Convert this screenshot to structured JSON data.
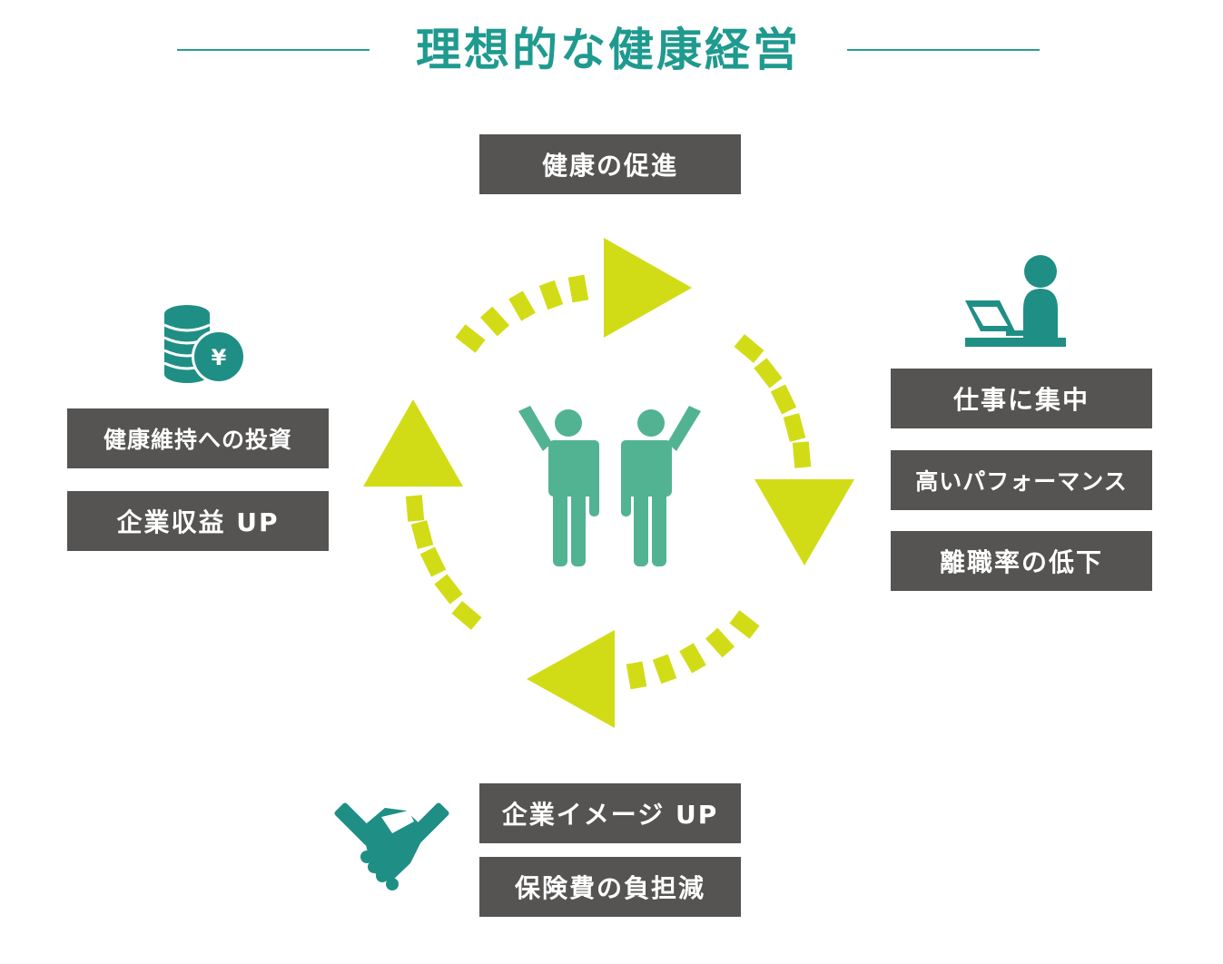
{
  "title": "理想的な健康経営",
  "top": {
    "label": "健康の促進"
  },
  "right": {
    "items": [
      "仕事に集中",
      "高いパフォーマンス",
      "離職率の低下"
    ]
  },
  "left": {
    "items": [
      "健康維持への投資",
      "企業収益 UP"
    ]
  },
  "bottom": {
    "items": [
      "企業イメージ UP",
      "保険費の負担減"
    ]
  },
  "icons": {
    "coins": "coins-yen-icon",
    "worker": "person-at-laptop-icon",
    "handshake": "handshake-icon",
    "people": "two-people-cheering-icon"
  },
  "colors": {
    "title": "#1f9a8f",
    "box": "#555452",
    "arrow": "#d2dc16",
    "teal_icon": "#1f8f86",
    "people": "#52b393"
  }
}
